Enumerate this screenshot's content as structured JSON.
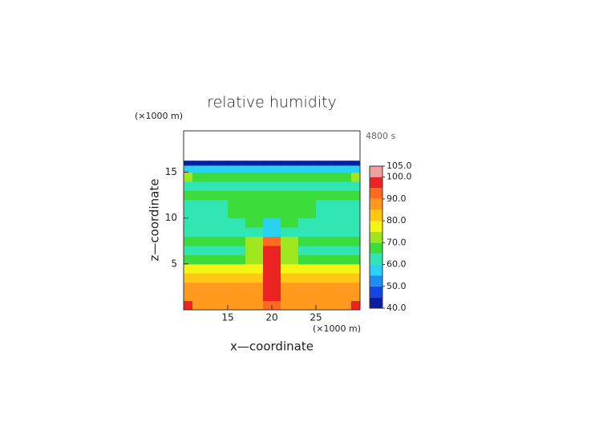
{
  "chart_data": {
    "type": "contour",
    "title": "relative humidity",
    "xlabel": "x—coordinate",
    "ylabel": "z—coordinate",
    "x_unit_label": "(×1000 m)",
    "y_unit_label": "(×1000 m)",
    "time_label": "4800 s",
    "xlim": [
      10,
      30
    ],
    "ylim": [
      0,
      19.5
    ],
    "xticks": [
      15,
      20,
      25
    ],
    "yticks": [
      5,
      10,
      15
    ],
    "x": [
      10,
      12,
      14,
      16,
      18,
      20,
      22,
      24,
      26,
      28,
      30
    ],
    "y": [
      0.5,
      1.5,
      2.5,
      3.5,
      4.5,
      5.5,
      6.5,
      7.5,
      8.5,
      9.5,
      10.5,
      11.5,
      12.5,
      13.5,
      14.5,
      15.5,
      16.0
    ],
    "z": [
      [
        95,
        88,
        88,
        88,
        88,
        92,
        88,
        88,
        88,
        88,
        95
      ],
      [
        88,
        88,
        88,
        88,
        88,
        97,
        88,
        88,
        88,
        88,
        88
      ],
      [
        86,
        86,
        86,
        86,
        86,
        97,
        86,
        86,
        86,
        86,
        86
      ],
      [
        82,
        82,
        82,
        82,
        84,
        97,
        84,
        82,
        82,
        82,
        82
      ],
      [
        77,
        77,
        77,
        76,
        78,
        97,
        78,
        76,
        77,
        77,
        77
      ],
      [
        66,
        66,
        66,
        66,
        72,
        97,
        72,
        66,
        66,
        66,
        66
      ],
      [
        64,
        64,
        64,
        64,
        70,
        97,
        70,
        64,
        64,
        64,
        64
      ],
      [
        68,
        68,
        68,
        68,
        72,
        92,
        72,
        68,
        68,
        68,
        68
      ],
      [
        62,
        62,
        62,
        62,
        62,
        55,
        62,
        62,
        62,
        62,
        62
      ],
      [
        62,
        62,
        62,
        63,
        66,
        57,
        66,
        63,
        62,
        62,
        60
      ],
      [
        62,
        62,
        62,
        66,
        67,
        67,
        67,
        66,
        62,
        62,
        62
      ],
      [
        62,
        62,
        64,
        66,
        67,
        67,
        67,
        66,
        64,
        62,
        62
      ],
      [
        66,
        66,
        66,
        66,
        67,
        67,
        67,
        66,
        66,
        66,
        66
      ],
      [
        62,
        62,
        62,
        62,
        62,
        62,
        62,
        62,
        62,
        62,
        62
      ],
      [
        72,
        68,
        67,
        67,
        67,
        67,
        67,
        67,
        67,
        68,
        72
      ],
      [
        57,
        57,
        57,
        57,
        57,
        57,
        57,
        57,
        57,
        57,
        57
      ],
      [
        42,
        42,
        42,
        42,
        42,
        42,
        42,
        42,
        42,
        42,
        42
      ]
    ],
    "levels": [
      40,
      45,
      50,
      55,
      60,
      65,
      70,
      75,
      80,
      85,
      90,
      95,
      100,
      105
    ],
    "colors": [
      "#0a1ea0",
      "#1446e6",
      "#1e8cf0",
      "#28d2f0",
      "#32e6b4",
      "#3cdc3c",
      "#a0e61e",
      "#f5f514",
      "#ffc814",
      "#ff9a1e",
      "#ff6a1e",
      "#eb2323",
      "#f0a0a0"
    ],
    "colorbar_ticks": [
      {
        "value": 40,
        "label": "40.0"
      },
      {
        "value": 50,
        "label": "50.0"
      },
      {
        "value": 60,
        "label": "60.0"
      },
      {
        "value": 70,
        "label": "70.0"
      },
      {
        "value": 80,
        "label": "80.0"
      },
      {
        "value": 90,
        "label": "90.0"
      },
      {
        "value": 100,
        "label": "100.0"
      },
      {
        "value": 105,
        "label": "105.0"
      }
    ]
  }
}
